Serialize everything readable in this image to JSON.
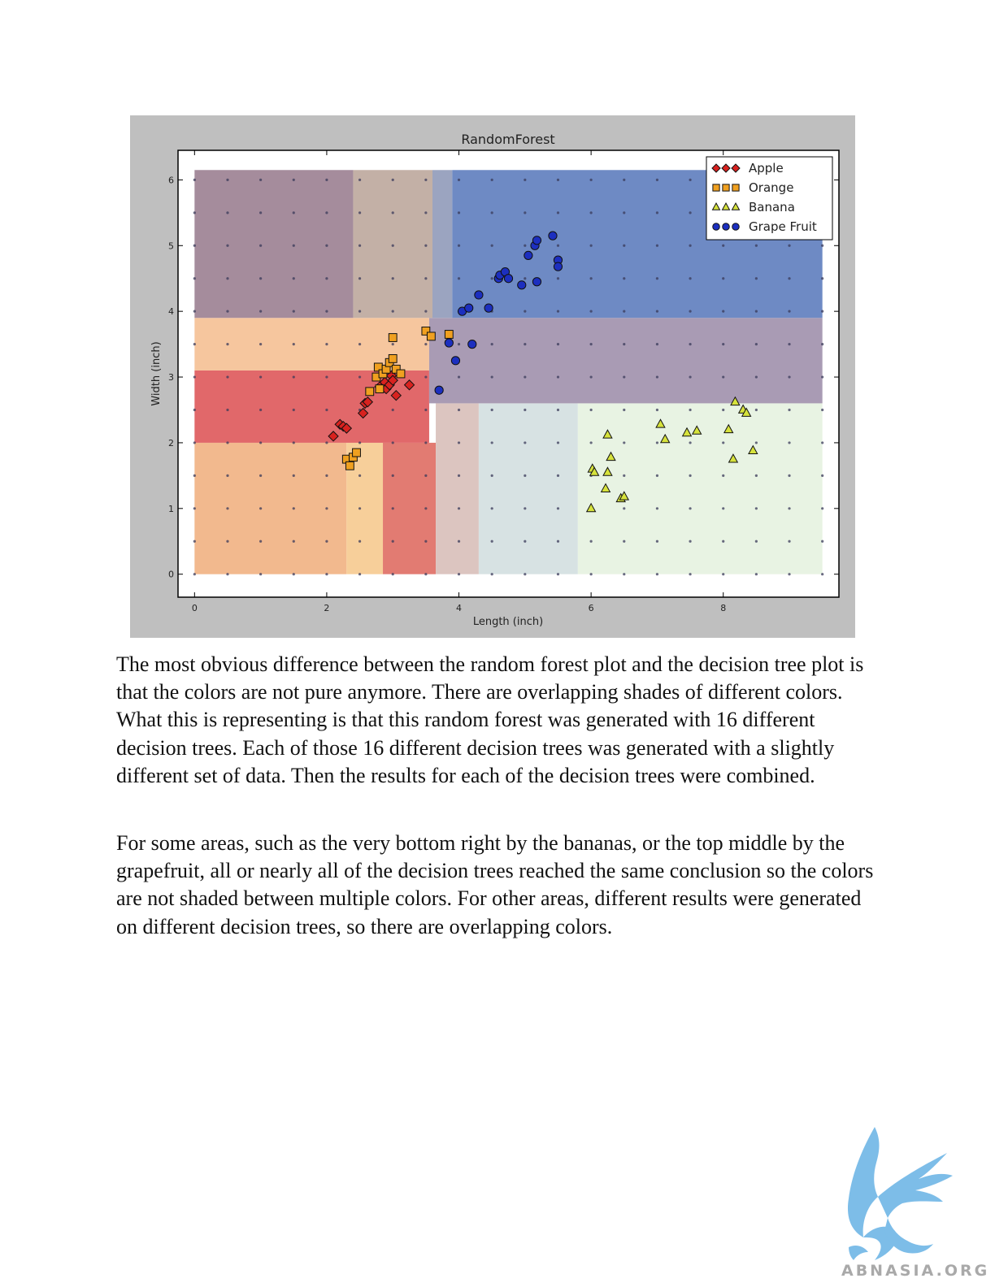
{
  "chart_data": {
    "type": "scatter",
    "title": "RandomForest",
    "xlabel": "Length (inch)",
    "ylabel": "Width (inch)",
    "xlim": [
      -0.25,
      9.75
    ],
    "ylim": [
      -0.35,
      6.45
    ],
    "x_ticks": [
      "0",
      "2",
      "4",
      "6",
      "8"
    ],
    "y_ticks": [
      "0",
      "1",
      "2",
      "3",
      "4",
      "5",
      "6"
    ],
    "legend_position": "top-right",
    "grid": false,
    "background_regions": [
      {
        "x": [
          0,
          2.3
        ],
        "y": [
          0,
          2.0
        ],
        "class": "Orange",
        "color": "#f2b98e"
      },
      {
        "x": [
          2.3,
          2.85
        ],
        "y": [
          0,
          2.0
        ],
        "class": "Orange",
        "color": "#f7cf9a"
      },
      {
        "x": [
          2.85,
          3.65
        ],
        "y": [
          0,
          2.0
        ],
        "class": "Apple",
        "color": "#e27b72"
      },
      {
        "x": [
          3.65,
          4.3
        ],
        "y": [
          0,
          2.6
        ],
        "class": "Mixed",
        "color": "#dcc5c0"
      },
      {
        "x": [
          4.3,
          5.8
        ],
        "y": [
          0,
          2.6
        ],
        "class": "Mixed",
        "color": "#d7e2e3"
      },
      {
        "x": [
          5.8,
          9.5
        ],
        "y": [
          0,
          2.6
        ],
        "class": "Banana",
        "color": "#e8f3e3"
      },
      {
        "x": [
          0,
          3.55
        ],
        "y": [
          2.0,
          3.1
        ],
        "class": "Apple",
        "color": "#e1686a"
      },
      {
        "x": [
          0,
          3.55
        ],
        "y": [
          3.1,
          3.9
        ],
        "class": "Orange",
        "color": "#f6c69e"
      },
      {
        "x": [
          3.55,
          9.5
        ],
        "y": [
          2.6,
          3.9
        ],
        "class": "Mixed",
        "color": "#a99bb4"
      },
      {
        "x": [
          0,
          2.4
        ],
        "y": [
          3.9,
          6.15
        ],
        "class": "Mixed",
        "color": "#a58c9c"
      },
      {
        "x": [
          2.4,
          3.6
        ],
        "y": [
          3.9,
          6.15
        ],
        "class": "Mixed",
        "color": "#c3b0a6"
      },
      {
        "x": [
          3.6,
          3.9
        ],
        "y": [
          3.9,
          6.15
        ],
        "class": "Mixed",
        "color": "#9ba4c0"
      },
      {
        "x": [
          3.9,
          9.5
        ],
        "y": [
          3.9,
          6.15
        ],
        "class": "Grape Fruit",
        "color": "#6e8ac4"
      }
    ],
    "grid_points": {
      "x_step": 0.5,
      "y_step": 0.5,
      "x_range": [
        0,
        9.5
      ],
      "y_range": [
        0,
        6
      ]
    },
    "series": [
      {
        "name": "Apple",
        "marker": "diamond",
        "color": "#d8221f",
        "points": [
          [
            2.1,
            2.1
          ],
          [
            2.2,
            2.28
          ],
          [
            2.25,
            2.25
          ],
          [
            2.3,
            2.22
          ],
          [
            2.55,
            2.45
          ],
          [
            2.58,
            2.6
          ],
          [
            2.62,
            2.62
          ],
          [
            2.8,
            2.85
          ],
          [
            2.88,
            2.92
          ],
          [
            2.9,
            2.82
          ],
          [
            2.95,
            2.88
          ],
          [
            2.98,
            3.02
          ],
          [
            3.0,
            2.95
          ],
          [
            3.05,
            2.72
          ],
          [
            3.25,
            2.88
          ]
        ]
      },
      {
        "name": "Orange",
        "marker": "square",
        "color": "#f0a020",
        "points": [
          [
            2.3,
            1.75
          ],
          [
            2.35,
            1.65
          ],
          [
            2.4,
            1.78
          ],
          [
            2.45,
            1.85
          ],
          [
            2.65,
            2.78
          ],
          [
            2.75,
            3.0
          ],
          [
            2.78,
            3.15
          ],
          [
            2.8,
            2.82
          ],
          [
            2.85,
            3.05
          ],
          [
            2.9,
            3.12
          ],
          [
            2.95,
            3.22
          ],
          [
            3.0,
            3.6
          ],
          [
            3.0,
            3.28
          ],
          [
            3.05,
            3.12
          ],
          [
            3.12,
            3.05
          ],
          [
            3.5,
            3.7
          ],
          [
            3.58,
            3.62
          ],
          [
            3.85,
            3.65
          ]
        ]
      },
      {
        "name": "Banana",
        "marker": "triangle",
        "color": "#d6e23c",
        "points": [
          [
            6.0,
            1.0
          ],
          [
            6.02,
            1.6
          ],
          [
            6.05,
            1.55
          ],
          [
            6.22,
            1.3
          ],
          [
            6.25,
            1.55
          ],
          [
            6.25,
            2.12
          ],
          [
            6.3,
            1.78
          ],
          [
            6.45,
            1.15
          ],
          [
            6.5,
            1.18
          ],
          [
            7.05,
            2.28
          ],
          [
            7.12,
            2.05
          ],
          [
            7.45,
            2.15
          ],
          [
            7.6,
            2.18
          ],
          [
            8.08,
            2.2
          ],
          [
            8.15,
            1.75
          ],
          [
            8.18,
            2.62
          ],
          [
            8.3,
            2.5
          ],
          [
            8.35,
            2.45
          ],
          [
            8.45,
            1.88
          ]
        ]
      },
      {
        "name": "Grape Fruit",
        "marker": "circle",
        "color": "#1c2fbf",
        "points": [
          [
            3.7,
            2.8
          ],
          [
            3.85,
            3.52
          ],
          [
            3.95,
            3.25
          ],
          [
            4.05,
            4.0
          ],
          [
            4.15,
            4.05
          ],
          [
            4.2,
            3.5
          ],
          [
            4.3,
            4.25
          ],
          [
            4.45,
            4.05
          ],
          [
            4.6,
            4.5
          ],
          [
            4.62,
            4.55
          ],
          [
            4.7,
            4.6
          ],
          [
            4.75,
            4.5
          ],
          [
            4.95,
            4.4
          ],
          [
            5.05,
            4.85
          ],
          [
            5.15,
            5.0
          ],
          [
            5.18,
            5.08
          ],
          [
            5.18,
            4.45
          ],
          [
            5.42,
            5.15
          ],
          [
            5.5,
            4.78
          ],
          [
            5.5,
            4.68
          ]
        ]
      }
    ]
  },
  "document": {
    "paragraph_1": "The most obvious difference between the random forest plot and the decision tree plot is that the colors are not pure anymore.  There are overlapping shades of different colors. What this is representing is that this random forest was generated with 16 different decision trees.  Each of those 16 different decision trees was generated with a slightly different set of data.  Then the results for each of the decision trees were combined.",
    "paragraph_2": "For some areas, such as the very bottom right by the bananas, or the top middle by the grapefruit, all or nearly all of the decision trees reached the same conclusion so the colors are not shaded between multiple colors.  For other areas, different results were generated on different decision trees, so there are overlapping colors."
  },
  "logo": {
    "text": "ABNASIA.ORG",
    "icon": "griffin-icon",
    "color": "#6fb6e6"
  }
}
